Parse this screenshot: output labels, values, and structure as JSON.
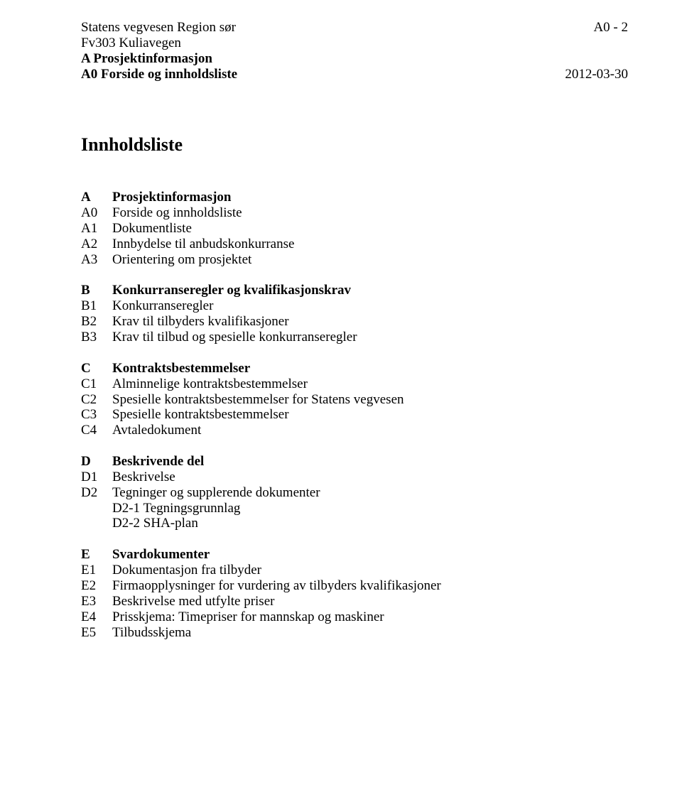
{
  "header": {
    "org": "Statens vegvesen Region sør",
    "project": "Fv303 Kuliavegen",
    "section_bold": "A Prosjektinformasjon",
    "subsection_bold": "A0 Forside og innholdsliste",
    "page_code": "A0 - 2",
    "date": "2012-03-30"
  },
  "title": "Innholdsliste",
  "sections": {
    "A": {
      "heading_code": "A",
      "heading_label": "Prosjektinformasjon",
      "items": [
        {
          "code": "A0",
          "label": "Forside og innholdsliste"
        },
        {
          "code": "A1",
          "label": "Dokumentliste"
        },
        {
          "code": "A2",
          "label": "Innbydelse til anbudskonkurranse"
        },
        {
          "code": "A3",
          "label": "Orientering om prosjektet"
        }
      ]
    },
    "B": {
      "heading_code": "B",
      "heading_label": "Konkurranseregler og kvalifikasjonskrav",
      "items": [
        {
          "code": "B1",
          "label": "Konkurranseregler"
        },
        {
          "code": "B2",
          "label": "Krav til tilbyders kvalifikasjoner"
        },
        {
          "code": "B3",
          "label": "Krav til tilbud og spesielle konkurranseregler"
        }
      ]
    },
    "C": {
      "heading_code": "C",
      "heading_label": "Kontraktsbestemmelser",
      "items": [
        {
          "code": "C1",
          "label": "Alminnelige kontraktsbestemmelser"
        },
        {
          "code": "C2",
          "label": "Spesielle kontraktsbestemmelser for Statens vegvesen"
        },
        {
          "code": "C3",
          "label": "Spesielle kontraktsbestemmelser"
        },
        {
          "code": "C4",
          "label": "Avtaledokument"
        }
      ]
    },
    "D": {
      "heading_code": "D",
      "heading_label": "Beskrivende del",
      "items": [
        {
          "code": "D1",
          "label": "Beskrivelse"
        },
        {
          "code": "D2",
          "label": "Tegninger og supplerende dokumenter"
        }
      ],
      "sub_items": [
        "D2-1 Tegningsgrunnlag",
        "D2-2 SHA-plan"
      ]
    },
    "E": {
      "heading_code": "E",
      "heading_label": "Svardokumenter",
      "items": [
        {
          "code": "E1",
          "label": "Dokumentasjon fra tilbyder"
        },
        {
          "code": "E2",
          "label": "Firmaopplysninger for vurdering av tilbyders kvalifikasjoner"
        },
        {
          "code": "E3",
          "label": "Beskrivelse med utfylte priser"
        },
        {
          "code": "E4",
          "label": "Prisskjema: Timepriser for mannskap og maskiner"
        },
        {
          "code": "E5",
          "label": "Tilbudsskjema"
        }
      ]
    }
  }
}
